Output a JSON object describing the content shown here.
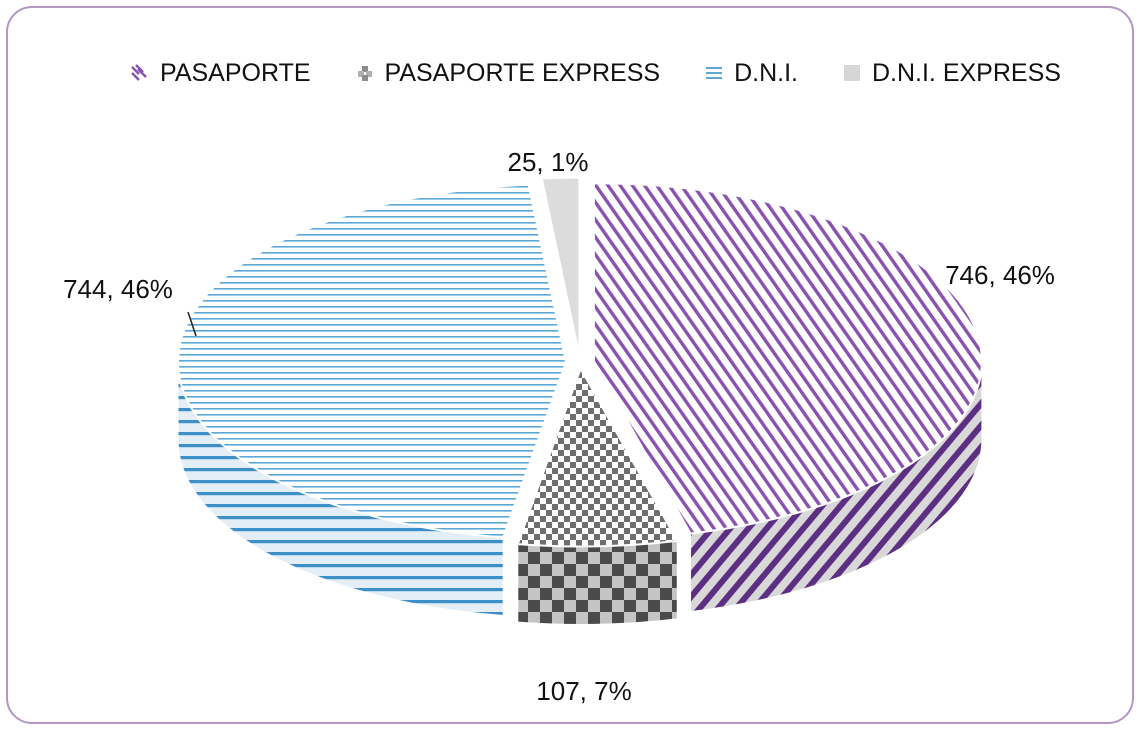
{
  "chart_data": {
    "type": "pie",
    "style": "3d",
    "categories": [
      "PASAPORTE",
      "PASAPORTE EXPRESS",
      "D.N.I.",
      "D.N.I. EXPRESS"
    ],
    "values": [
      746,
      107,
      744,
      25
    ],
    "data_labels": [
      "746, 46%",
      "107, 7%",
      "744, 46%",
      "25, 1%"
    ],
    "legend_position": "top",
    "colors": [
      "#8a52b0",
      "#6e6e6e",
      "#5ba7d8",
      "#c8c8c8"
    ],
    "patterns": [
      "diagonal-stripes",
      "checkerboard",
      "horizontal-stripes",
      "solid"
    ]
  }
}
